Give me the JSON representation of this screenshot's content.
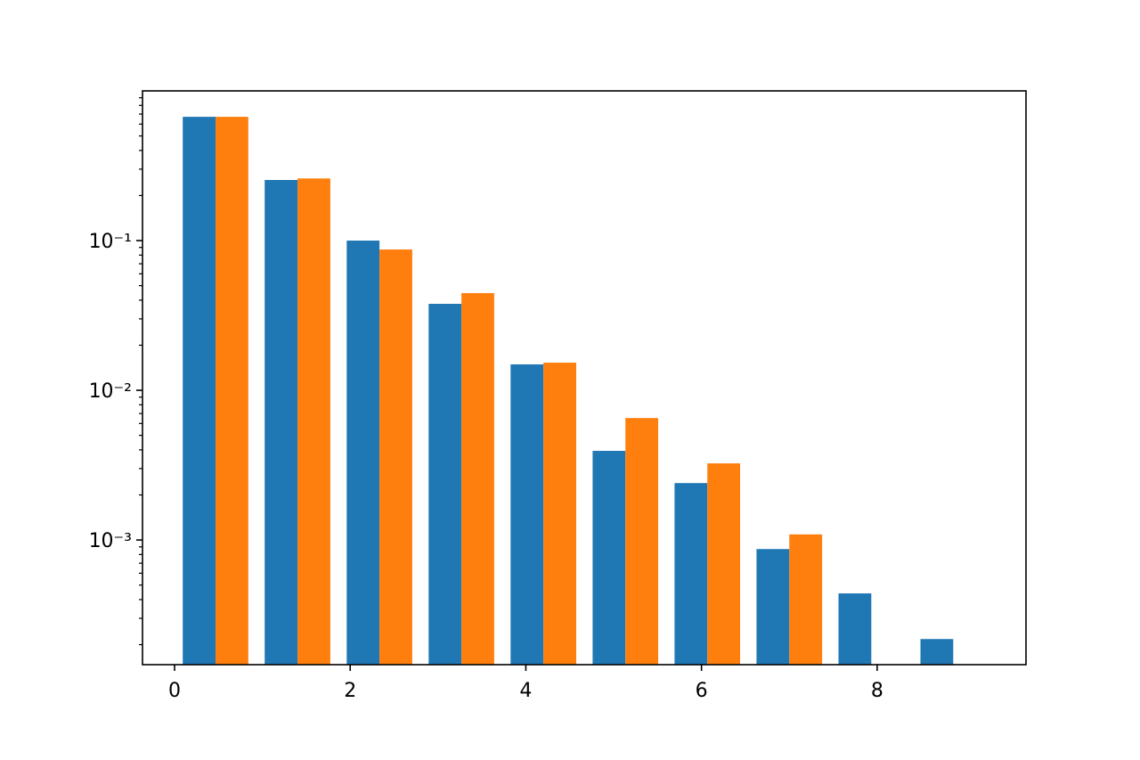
{
  "chart_data": {
    "type": "histogram",
    "bins": [
      0,
      0.933,
      1.867,
      2.8,
      3.733,
      4.667,
      5.6,
      6.533,
      7.467,
      8.4,
      9.333
    ],
    "series": [
      {
        "color": "#1f77b4",
        "values": [
          0.671,
          0.254,
          0.1,
          0.0378,
          0.0149,
          0.00394,
          0.0024,
          0.00087,
          0.00044,
          0.000218
        ]
      },
      {
        "color": "#ff7f0e",
        "values": [
          0.671,
          0.26,
          0.0872,
          0.0446,
          0.0153,
          0.00653,
          0.00325,
          0.00109,
          0,
          0
        ]
      }
    ],
    "xlim": [
      -0.365,
      9.695
    ],
    "xticks": [
      0,
      2,
      4,
      6,
      8
    ],
    "ylim": [
      0.000147,
      1.0
    ],
    "log_y": true,
    "yticks": [
      {
        "value": 0.1,
        "label": "10⁻¹"
      },
      {
        "value": 0.01,
        "label": "10⁻²"
      },
      {
        "value": 0.001,
        "label": "10⁻³"
      }
    ]
  }
}
